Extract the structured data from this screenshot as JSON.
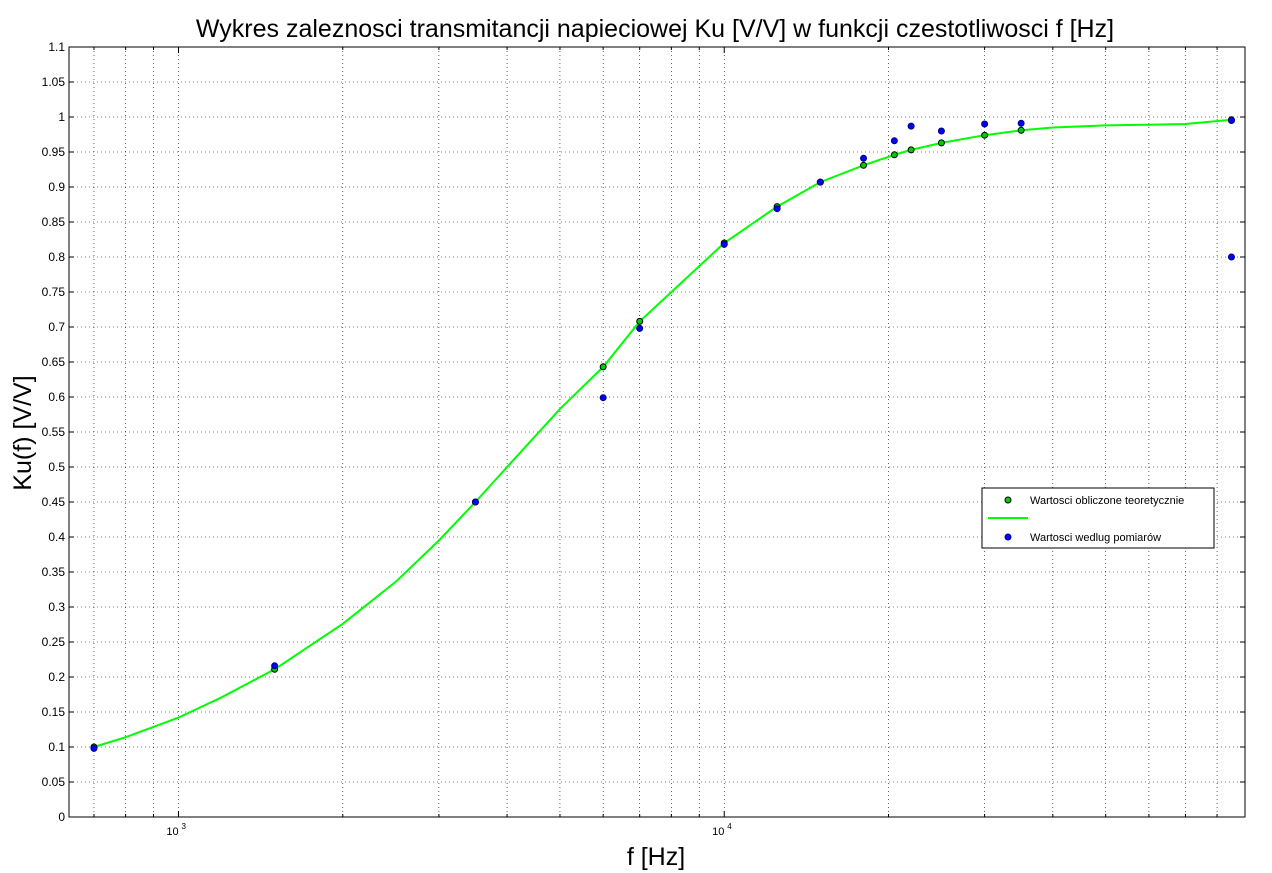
{
  "chart_data": {
    "type": "line",
    "title": "Wykres zaleznosci transmitancji napieciowej Ku [V/V] w funkcji czestotliwosci f [Hz]",
    "xlabel": "f [Hz]",
    "ylabel": "Ku(f) [V/V]",
    "xscale": "log",
    "xlim": [
      630,
      90000
    ],
    "ylim": [
      0,
      1.1
    ],
    "grid": true,
    "legend_position": "right",
    "x_ticks": [
      {
        "base": "10",
        "exp": "3",
        "value": 1000
      },
      {
        "base": "10",
        "exp": "4",
        "value": 10000
      }
    ],
    "y_ticks": [
      "0",
      "0.05",
      "0.1",
      "0.15",
      "0.2",
      "0.25",
      "0.3",
      "0.35",
      "0.4",
      "0.45",
      "0.5",
      "0.55",
      "0.6",
      "0.65",
      "0.7",
      "0.75",
      "0.8",
      "0.85",
      "0.9",
      "0.95",
      "1",
      "1.05",
      "1.1"
    ],
    "series": [
      {
        "name": "Wartosci obliczone teoretycznie",
        "kind": "markers",
        "color": "#00cc00",
        "x": [
          700,
          1500,
          3500,
          6000,
          7000,
          10000,
          12500,
          15000,
          18000,
          20500,
          22000,
          25000,
          30000,
          35000,
          85000
        ],
        "y": [
          0.1,
          0.211,
          0.45,
          0.643,
          0.708,
          0.82,
          0.872,
          0.907,
          0.931,
          0.946,
          0.953,
          0.963,
          0.974,
          0.981,
          0.996
        ]
      },
      {
        "name": "",
        "kind": "line",
        "color": "#00ff00",
        "x": [
          700,
          800,
          1000,
          1200,
          1500,
          2000,
          2500,
          3000,
          3500,
          4000,
          5000,
          6000,
          7000,
          8000,
          10000,
          12500,
          15000,
          18000,
          20500,
          22000,
          25000,
          30000,
          35000,
          40000,
          50000,
          60000,
          70000,
          85000
        ],
        "y": [
          0.1,
          0.114,
          0.142,
          0.171,
          0.211,
          0.276,
          0.336,
          0.395,
          0.45,
          0.5,
          0.583,
          0.643,
          0.708,
          0.75,
          0.82,
          0.872,
          0.907,
          0.931,
          0.946,
          0.953,
          0.963,
          0.974,
          0.981,
          0.985,
          0.988,
          0.989,
          0.99,
          0.996
        ]
      },
      {
        "name": "Wartosci wedlug pomiarów",
        "kind": "markers",
        "color": "#0000ff",
        "x": [
          700,
          1500,
          3500,
          6000,
          7000,
          10000,
          12500,
          15000,
          18000,
          20500,
          22000,
          25000,
          30000,
          35000,
          85000,
          85000
        ],
        "y": [
          0.098,
          0.216,
          0.45,
          0.599,
          0.698,
          0.818,
          0.869,
          0.907,
          0.941,
          0.966,
          0.987,
          0.98,
          0.99,
          0.991,
          0.995,
          0.8
        ]
      }
    ]
  }
}
